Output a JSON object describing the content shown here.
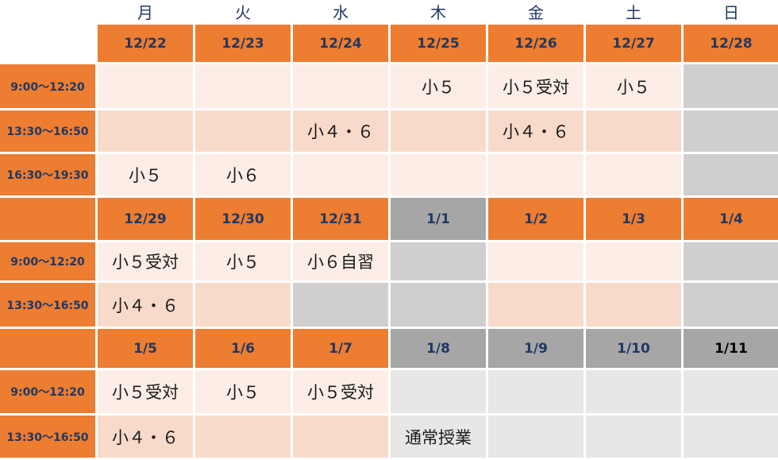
{
  "palette": {
    "orange": "#ED7D31",
    "pink_light": "#FCEEE7",
    "pink_medium": "#F8DACA",
    "gray_dark": "#A6A6A6",
    "gray_medium": "#D0CECE",
    "gray_light": "#E8E7E7",
    "navy": "#1F3864",
    "text_dark": "#1A1A1A",
    "black": "#000000",
    "none": "transparent"
  },
  "grid": {
    "weekdays": [
      "月",
      "火",
      "水",
      "木",
      "金",
      "土",
      "日"
    ],
    "rows": [
      {
        "type": "dates",
        "time": {
          "t": "",
          "bg": "none"
        },
        "cells": [
          {
            "t": "12/22",
            "bg": "orange"
          },
          {
            "t": "12/23",
            "bg": "orange"
          },
          {
            "t": "12/24",
            "bg": "orange"
          },
          {
            "t": "12/25",
            "bg": "orange"
          },
          {
            "t": "12/26",
            "bg": "orange"
          },
          {
            "t": "12/27",
            "bg": "orange"
          },
          {
            "t": "12/28",
            "bg": "orange"
          }
        ]
      },
      {
        "type": "slot",
        "time": {
          "t": "9:00〜12:20",
          "bg": "orange"
        },
        "cells": [
          {
            "t": "",
            "bg": "pink_light"
          },
          {
            "t": "",
            "bg": "pink_light"
          },
          {
            "t": "",
            "bg": "pink_light"
          },
          {
            "t": "小５",
            "bg": "pink_light"
          },
          {
            "t": "小５受対",
            "bg": "pink_light"
          },
          {
            "t": "小５",
            "bg": "pink_light"
          },
          {
            "t": "",
            "bg": "gray_medium"
          }
        ]
      },
      {
        "type": "slot",
        "time": {
          "t": "13:30〜16:50",
          "bg": "orange"
        },
        "cells": [
          {
            "t": "",
            "bg": "pink_medium"
          },
          {
            "t": "",
            "bg": "pink_medium"
          },
          {
            "t": "小４・６",
            "bg": "pink_medium"
          },
          {
            "t": "",
            "bg": "pink_medium"
          },
          {
            "t": "小４・６",
            "bg": "pink_medium"
          },
          {
            "t": "",
            "bg": "pink_medium"
          },
          {
            "t": "",
            "bg": "gray_medium"
          }
        ]
      },
      {
        "type": "slot",
        "time": {
          "t": "16:30〜19:30",
          "bg": "orange"
        },
        "cells": [
          {
            "t": "小５",
            "bg": "pink_light"
          },
          {
            "t": "小６",
            "bg": "pink_light"
          },
          {
            "t": "",
            "bg": "pink_light"
          },
          {
            "t": "",
            "bg": "pink_light"
          },
          {
            "t": "",
            "bg": "pink_light"
          },
          {
            "t": "",
            "bg": "pink_light"
          },
          {
            "t": "",
            "bg": "gray_medium"
          }
        ]
      },
      {
        "type": "dates",
        "time": {
          "t": "",
          "bg": "orange"
        },
        "cells": [
          {
            "t": "12/29",
            "bg": "orange"
          },
          {
            "t": "12/30",
            "bg": "orange"
          },
          {
            "t": "12/31",
            "bg": "orange"
          },
          {
            "t": "1/1",
            "bg": "gray_dark"
          },
          {
            "t": "1/2",
            "bg": "orange"
          },
          {
            "t": "1/3",
            "bg": "orange"
          },
          {
            "t": "1/4",
            "bg": "orange"
          }
        ]
      },
      {
        "type": "slot",
        "time": {
          "t": "9:00〜12:20",
          "bg": "orange"
        },
        "cells": [
          {
            "t": "小５受対",
            "bg": "pink_light"
          },
          {
            "t": "小５",
            "bg": "pink_light"
          },
          {
            "t": "小６自習",
            "bg": "pink_light"
          },
          {
            "t": "",
            "bg": "gray_medium"
          },
          {
            "t": "",
            "bg": "pink_light"
          },
          {
            "t": "",
            "bg": "pink_light"
          },
          {
            "t": "",
            "bg": "gray_medium"
          }
        ]
      },
      {
        "type": "slot",
        "time": {
          "t": "13:30〜16:50",
          "bg": "orange"
        },
        "cells": [
          {
            "t": "小４・６",
            "bg": "pink_medium"
          },
          {
            "t": "",
            "bg": "pink_medium"
          },
          {
            "t": "",
            "bg": "gray_medium"
          },
          {
            "t": "",
            "bg": "gray_medium"
          },
          {
            "t": "",
            "bg": "pink_medium"
          },
          {
            "t": "",
            "bg": "pink_medium"
          },
          {
            "t": "",
            "bg": "gray_medium"
          }
        ]
      },
      {
        "type": "dates",
        "time": {
          "t": "",
          "bg": "orange"
        },
        "cells": [
          {
            "t": "1/5",
            "bg": "orange"
          },
          {
            "t": "1/6",
            "bg": "orange"
          },
          {
            "t": "1/7",
            "bg": "orange"
          },
          {
            "t": "1/8",
            "bg": "gray_dark"
          },
          {
            "t": "1/9",
            "bg": "gray_dark"
          },
          {
            "t": "1/10",
            "bg": "gray_dark"
          },
          {
            "t": "1/11",
            "bg": "gray_dark",
            "fg": "black"
          }
        ]
      },
      {
        "type": "slot",
        "time": {
          "t": "9:00〜12:20",
          "bg": "orange"
        },
        "cells": [
          {
            "t": "小５受対",
            "bg": "pink_light"
          },
          {
            "t": "小５",
            "bg": "pink_light"
          },
          {
            "t": "小５受対",
            "bg": "pink_light"
          },
          {
            "t": "",
            "bg": "gray_light"
          },
          {
            "t": "",
            "bg": "gray_light"
          },
          {
            "t": "",
            "bg": "gray_light"
          },
          {
            "t": "",
            "bg": "gray_light"
          }
        ]
      },
      {
        "type": "slot",
        "time": {
          "t": "13:30〜16:50",
          "bg": "orange"
        },
        "cells": [
          {
            "t": "小４・６",
            "bg": "pink_medium"
          },
          {
            "t": "",
            "bg": "pink_medium"
          },
          {
            "t": "",
            "bg": "pink_medium"
          },
          {
            "t": "通常授業",
            "bg": "gray_light"
          },
          {
            "t": "",
            "bg": "gray_light"
          },
          {
            "t": "",
            "bg": "gray_light"
          },
          {
            "t": "",
            "bg": "gray_light"
          }
        ]
      }
    ]
  }
}
